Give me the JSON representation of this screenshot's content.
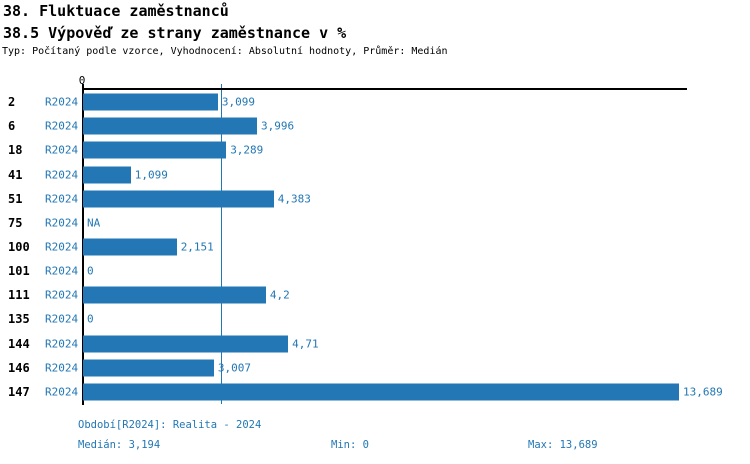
{
  "header": {
    "title": "38. Fluktuace zaměstnanců",
    "subtitle": "38.5 Výpověď ze strany zaměstnance v %",
    "meta": "Typ: Počítaný podle vzorce, Vyhodnocení: Absolutní hodnoty, Průměr: Medián"
  },
  "chart_data": {
    "type": "bar",
    "orientation": "horizontal",
    "title": "38.5 Výpověď ze strany zaměstnance v %",
    "axis": {
      "zero_label": "0",
      "min": 0,
      "max": 13.689,
      "grid": false
    },
    "period_label": "R2024",
    "categories": [
      "2",
      "6",
      "18",
      "41",
      "51",
      "75",
      "100",
      "101",
      "111",
      "135",
      "144",
      "146",
      "147"
    ],
    "rows": [
      {
        "category": "2",
        "period": "R2024",
        "value": 3.099,
        "display": "3,099"
      },
      {
        "category": "6",
        "period": "R2024",
        "value": 3.996,
        "display": "3,996"
      },
      {
        "category": "18",
        "period": "R2024",
        "value": 3.289,
        "display": "3,289"
      },
      {
        "category": "41",
        "period": "R2024",
        "value": 1.099,
        "display": "1,099"
      },
      {
        "category": "51",
        "period": "R2024",
        "value": 4.383,
        "display": "4,383"
      },
      {
        "category": "75",
        "period": "R2024",
        "value": null,
        "display": "NA"
      },
      {
        "category": "100",
        "period": "R2024",
        "value": 2.151,
        "display": "2,151"
      },
      {
        "category": "101",
        "period": "R2024",
        "value": 0,
        "display": "0"
      },
      {
        "category": "111",
        "period": "R2024",
        "value": 4.2,
        "display": "4,2"
      },
      {
        "category": "135",
        "period": "R2024",
        "value": 0,
        "display": "0"
      },
      {
        "category": "144",
        "period": "R2024",
        "value": 4.71,
        "display": "4,71"
      },
      {
        "category": "146",
        "period": "R2024",
        "value": 3.007,
        "display": "3,007"
      },
      {
        "category": "147",
        "period": "R2024",
        "value": 13.689,
        "display": "13,689"
      }
    ],
    "stats": {
      "median": 3.194,
      "min": 0,
      "max": 13.689
    },
    "colors": {
      "bar": "#2277b4",
      "blue_text": "#2277b4",
      "median_line": "#2277b4",
      "axis": "#000000"
    }
  },
  "footer": {
    "period_info": "Období[R2024]: Realita - 2024",
    "median_label": "Medián: 3,194",
    "min_label": "Min: 0",
    "max_label": "Max: 13,689"
  }
}
